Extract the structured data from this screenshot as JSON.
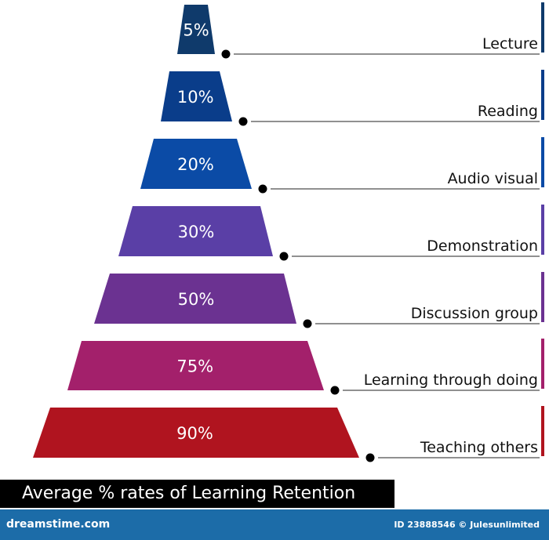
{
  "title": "Average % rates of Learning Retention",
  "levels": [
    {
      "percent": "5%",
      "label": "Lecture",
      "color": "#0f3a6b"
    },
    {
      "percent": "10%",
      "label": "Reading",
      "color": "#0a3d8a"
    },
    {
      "percent": "20%",
      "label": "Audio visual",
      "color": "#0b4ba6"
    },
    {
      "percent": "30%",
      "label": "Demonstration",
      "color": "#5a3fa6"
    },
    {
      "percent": "50%",
      "label": "Discussion group",
      "color": "#6b3291"
    },
    {
      "percent": "75%",
      "label": "Learning through doing",
      "color": "#a3206b"
    },
    {
      "percent": "90%",
      "label": "Teaching others",
      "color": "#b0141f"
    }
  ],
  "footer": {
    "site": "dreamstime.com",
    "credit": "ID 23888546 © Julesunlimited"
  }
}
